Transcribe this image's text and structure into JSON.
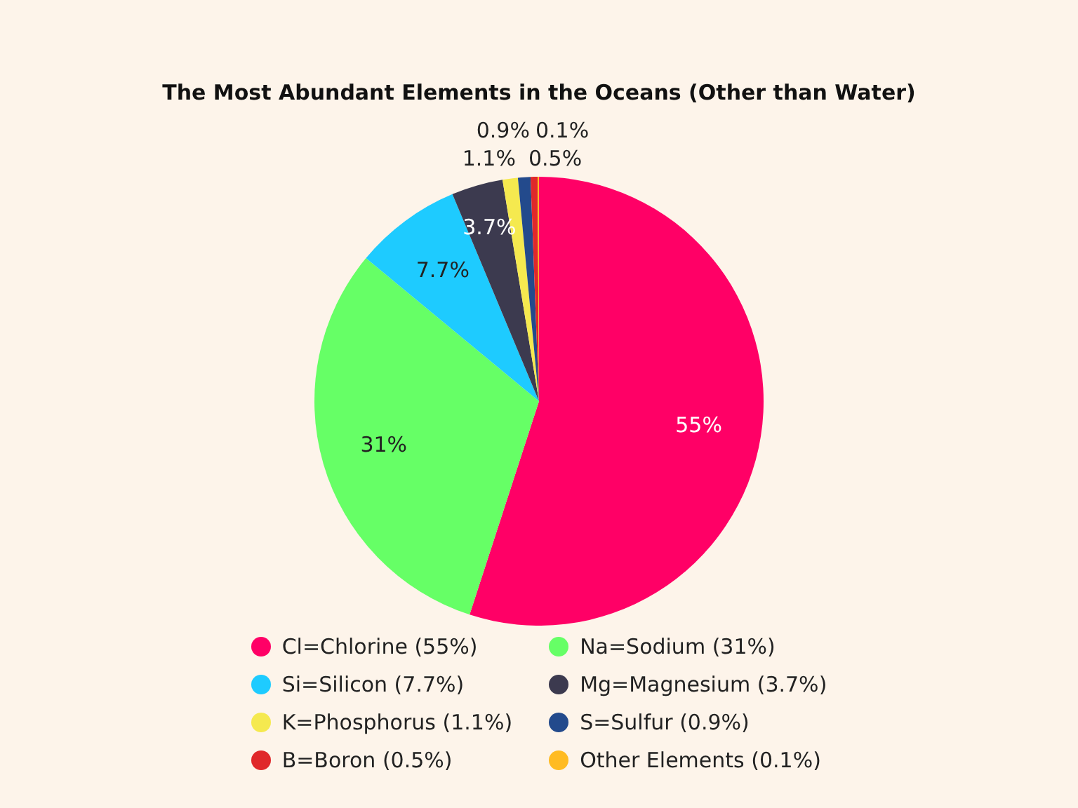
{
  "chart_data": {
    "type": "pie",
    "title": "The Most Abundant Elements in the Oceans (Other than Water)",
    "categories": [
      "Cl=Chlorine (55%)",
      "Na=Sodium (31%)",
      "Si=Silicon (7.7%)",
      "Mg=Magnesium (3.7%)",
      "K=Phosphorus (1.1%)",
      "S=Sulfur (0.9%)",
      "B=Boron (0.5%)",
      "Other Elements (0.1%)"
    ],
    "values": [
      55,
      31,
      7.7,
      3.7,
      1.1,
      0.9,
      0.5,
      0.1
    ],
    "colors": [
      "#ff0066",
      "#66ff66",
      "#1ecbff",
      "#3c3a4f",
      "#f5e94f",
      "#234a8c",
      "#e0282a",
      "#ffbb22"
    ],
    "value_labels": [
      "55%",
      "31%",
      "7.7%",
      "3.7%",
      "1.1%",
      "0.9%",
      "0.5%",
      "0.1%"
    ],
    "legend": "bottom"
  }
}
